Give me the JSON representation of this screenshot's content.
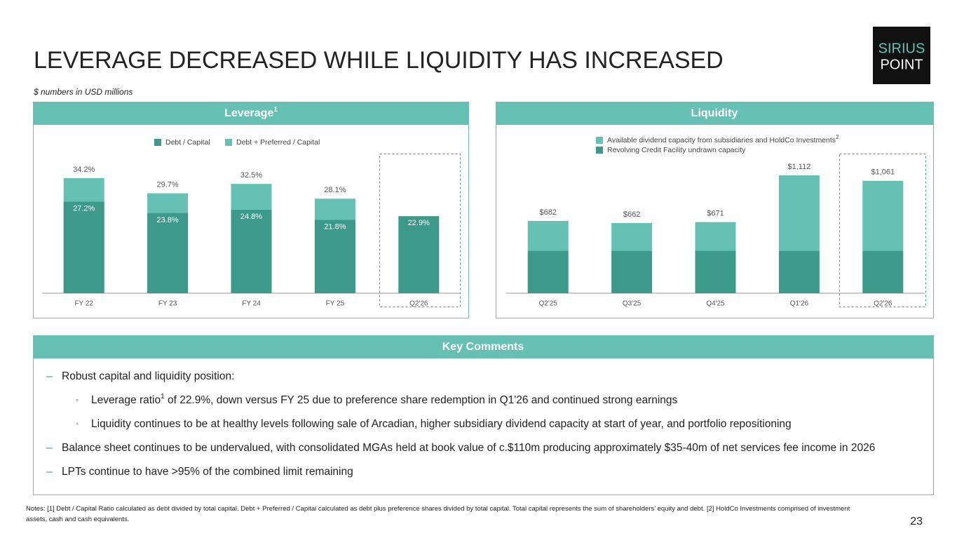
{
  "title": "LEVERAGE DECREASED WHILE LIQUIDITY HAS INCREASED",
  "subtitle": "$ numbers in USD millions",
  "logo": {
    "top": "SIRIUS",
    "bottom": "POINT"
  },
  "chart_data": [
    {
      "type": "bar",
      "stacked": false,
      "title": "Leverage",
      "title_note": "1",
      "categories": [
        "FY 22",
        "FY 23",
        "FY 24",
        "FY 25",
        "Q2'26"
      ],
      "series": [
        {
          "name": "Debt / Capital",
          "color": "#3d9a8b",
          "values": [
            27.2,
            23.8,
            24.8,
            21.8,
            22.9
          ],
          "value_labels": [
            "27.2%",
            "23.8%",
            "24.8%",
            "21.8%",
            "22.9%"
          ]
        },
        {
          "name": "Debt + Preferred / Capital",
          "color": "#66c1b4",
          "values": [
            34.2,
            29.7,
            32.5,
            28.1,
            null
          ],
          "value_labels": [
            "34.2%",
            "29.7%",
            "32.5%",
            "28.1%",
            null
          ]
        }
      ]
    },
    {
      "type": "bar",
      "stacked": true,
      "title": "Liquidity",
      "categories": [
        "Q2'25",
        "Q3'25",
        "Q4'25",
        "Q1'26",
        "Q2'26"
      ],
      "series": [
        {
          "name": "Available dividend capacity from subsidiaries and HoldCo Investments",
          "name_note": "2",
          "color": "#66c1b4",
          "values": [
            282,
            262,
            271,
            712,
            661
          ]
        },
        {
          "name": "Revolving Credit Facility undrawn capacity",
          "color": "#3d9a8b",
          "values": [
            400,
            400,
            400,
            400,
            400
          ]
        }
      ],
      "totals": [
        682,
        662,
        671,
        1112,
        1061
      ],
      "total_labels": [
        "$682",
        "$662",
        "$671",
        "$1,112",
        "$1,061"
      ]
    }
  ],
  "comments": {
    "title": "Key Comments",
    "items": [
      {
        "text": "Robust capital and liquidity position:",
        "sub": [
          {
            "text": "Leverage ratio",
            "note": "1",
            "rest": " of 22.9%, down versus FY 25 due to preference share redemption in Q1'26 and continued strong earnings"
          },
          {
            "text": "Liquidity continues to be at healthy levels following sale of Arcadian, higher subsidiary dividend capacity at start of year, and portfolio repositioning"
          }
        ]
      },
      {
        "text": "Balance sheet continues to be undervalued, with consolidated MGAs held at book value of c.$110m producing approximately $35-40m of net services fee income in 2026"
      },
      {
        "text": "LPTs continue to have >95% of the combined limit remaining"
      }
    ]
  },
  "notes": "Notes: [1] Debt / Capital Ratio calculated as debt divided by total capital. Debt + Preferred / Capital calculated as debt plus preference shares divided by total capital. Total capital represents the sum of shareholders’ equity and debt. [2] HoldCo Investments comprised of investment assets, cash and cash equivalents.",
  "page_number": "23"
}
